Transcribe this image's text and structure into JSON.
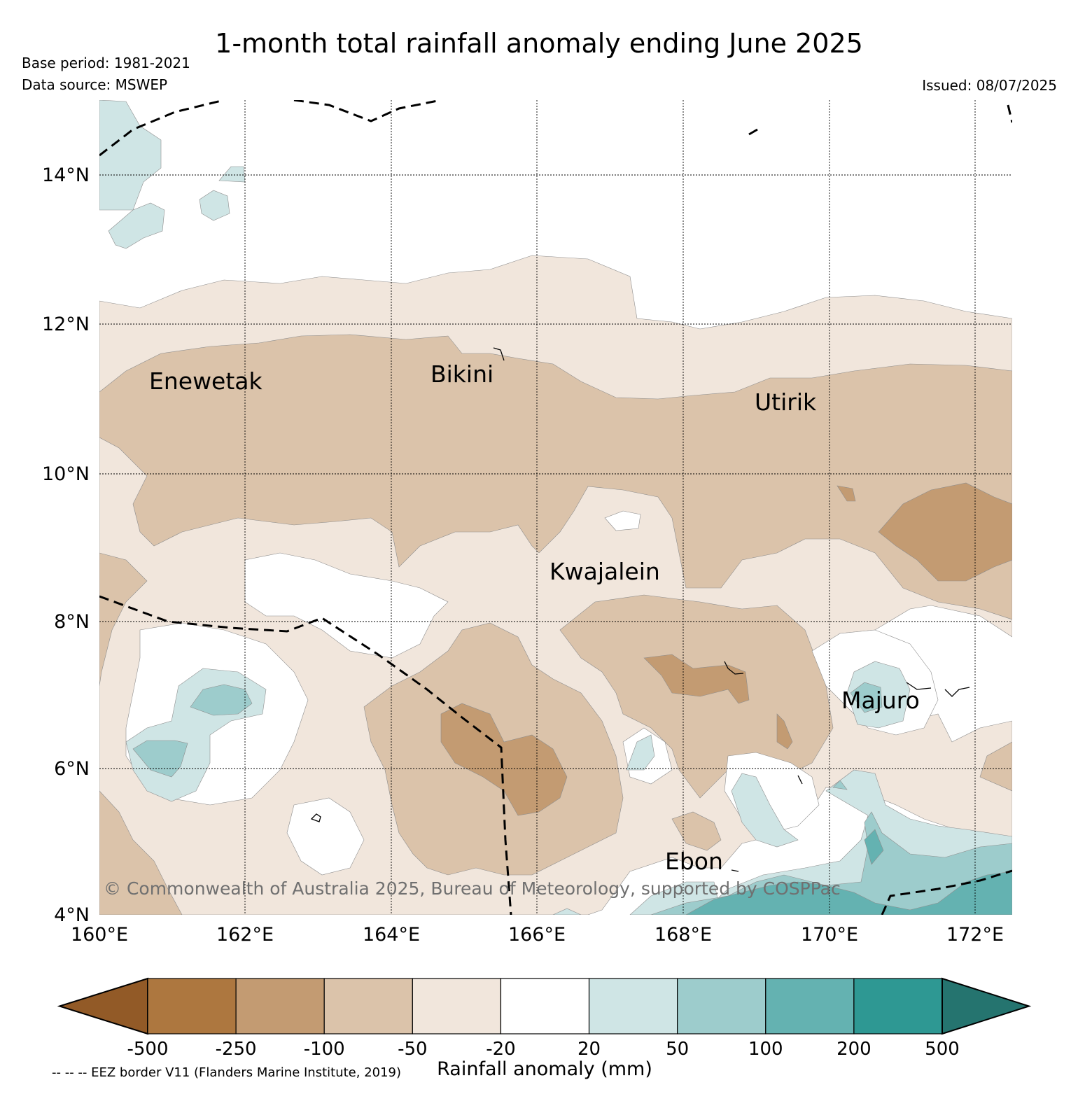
{
  "title": "1-month total rainfall anomaly ending June 2025",
  "base_period": "Base period: 1981-2021",
  "data_source": "Data source: MSWEP",
  "issued": "Issued: 08/07/2025",
  "copyright": "© Commonwealth of Australia 2025, Bureau of Meteorology, supported by COSPPac",
  "eez_note": "-- -- -- EEZ border V11 (Flanders Marine Institute, 2019)",
  "colorbar": {
    "title": "Rainfall anomaly (mm)",
    "boundaries": [
      "-500",
      "-250",
      "-100",
      "-50",
      "-20",
      "20",
      "50",
      "100",
      "200",
      "500"
    ],
    "colors": [
      "#925a27",
      "#ad773f",
      "#c39b72",
      "#dbc3aa",
      "#f1e6dc",
      "#ffffff",
      "#cfe5e5",
      "#9dcccc",
      "#64b2b1",
      "#2e9893",
      "#25746f"
    ]
  },
  "map": {
    "lon_labels": [
      "160°E",
      "162°E",
      "164°E",
      "166°E",
      "168°E",
      "170°E",
      "172°E"
    ],
    "lat_labels": [
      "14°N",
      "12°N",
      "10°N",
      "8°N",
      "6°N",
      "4°N"
    ],
    "places": [
      {
        "name": "Enewetak"
      },
      {
        "name": "Bikini"
      },
      {
        "name": "Utirik"
      },
      {
        "name": "Kwajalein"
      },
      {
        "name": "Majuro"
      },
      {
        "name": "Ebon"
      }
    ]
  }
}
